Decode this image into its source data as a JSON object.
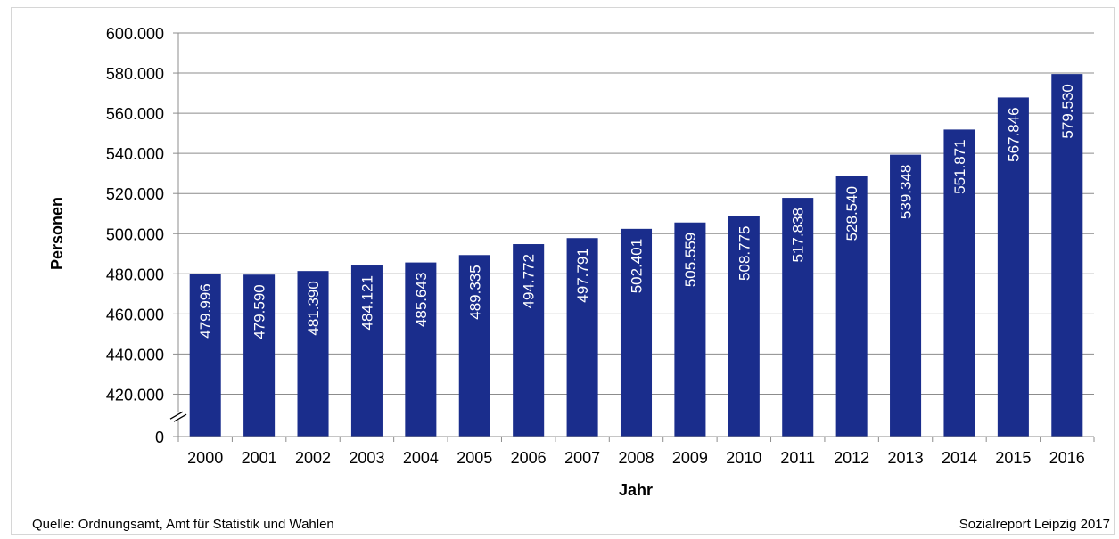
{
  "chart_data": {
    "type": "bar",
    "title": "",
    "xlabel": "Jahr",
    "ylabel": "Personen",
    "categories": [
      "2000",
      "2001",
      "2002",
      "2003",
      "2004",
      "2005",
      "2006",
      "2007",
      "2008",
      "2009",
      "2010",
      "2011",
      "2012",
      "2013",
      "2014",
      "2015",
      "2016"
    ],
    "values": [
      479996,
      479590,
      481390,
      484121,
      485643,
      489335,
      494772,
      497791,
      502401,
      505559,
      508775,
      517838,
      528540,
      539348,
      551871,
      567846,
      579530
    ],
    "value_labels": [
      "479.996",
      "479.590",
      "481.390",
      "484.121",
      "485.643",
      "489.335",
      "494.772",
      "497.791",
      "502.401",
      "505.559",
      "508.775",
      "517.838",
      "528.540",
      "539.348",
      "551.871",
      "567.846",
      "579.530"
    ],
    "yticks": [
      0,
      420000,
      440000,
      460000,
      480000,
      500000,
      520000,
      540000,
      560000,
      580000,
      600000
    ],
    "ytick_labels": [
      "0",
      "420.000",
      "440.000",
      "460.000",
      "480.000",
      "500.000",
      "520.000",
      "540.000",
      "560.000",
      "580.000",
      "600.000"
    ],
    "ylim": [
      400000,
      600000
    ],
    "axis_break": true,
    "grid": true,
    "bar_color": "#1a2d8c",
    "label_color": "#ffffff"
  },
  "footer": {
    "source": "Quelle: Ordnungsamt, Amt für Statistik und Wahlen",
    "credit": "Sozialreport Leipzig 2017"
  }
}
